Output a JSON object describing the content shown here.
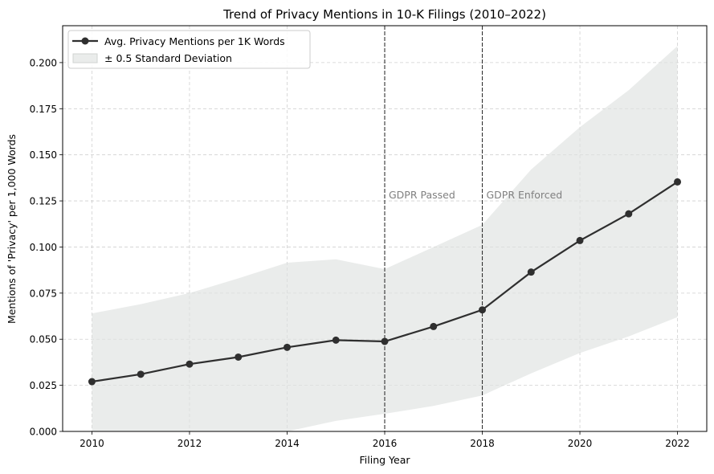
{
  "chart_data": {
    "type": "line",
    "title": "Trend of Privacy Mentions in 10-K Filings (2010–2022)",
    "xlabel": "Filing Year",
    "ylabel": "Mentions of 'Privacy' per 1,000 Words",
    "xlim": [
      2009.4,
      2022.6
    ],
    "ylim": [
      0,
      0.22
    ],
    "xticks": [
      2010,
      2012,
      2014,
      2016,
      2018,
      2020,
      2022
    ],
    "xtick_labels": [
      "2010",
      "2012",
      "2014",
      "2016",
      "2018",
      "2020",
      "2022"
    ],
    "yticks": [
      0,
      0.025,
      0.05,
      0.075,
      0.1,
      0.125,
      0.15,
      0.175,
      0.2
    ],
    "ytick_labels": [
      "0.000",
      "0.025",
      "0.050",
      "0.075",
      "0.100",
      "0.125",
      "0.150",
      "0.175",
      "0.200"
    ],
    "grid": true,
    "legend_position": "top-left",
    "x": [
      2010,
      2011,
      2012,
      2013,
      2014,
      2015,
      2016,
      2017,
      2018,
      2019,
      2020,
      2021,
      2022
    ],
    "series": [
      {
        "name": "Avg. Privacy Mentions per 1K Words",
        "values": [
          0.027,
          0.031,
          0.0365,
          0.0403,
          0.0456,
          0.0495,
          0.0488,
          0.0569,
          0.0659,
          0.0864,
          0.1035,
          0.118,
          0.1353
        ],
        "color": "#2f2f2f"
      }
    ],
    "band": {
      "name": "± 0.5 Standard Deviation",
      "upper": [
        0.064,
        0.069,
        0.075,
        0.083,
        0.0915,
        0.0933,
        0.088,
        0.1,
        0.112,
        0.142,
        0.165,
        0.185,
        0.209
      ],
      "lower": [
        0,
        0,
        0,
        0,
        0,
        0.0057,
        0.0096,
        0.0138,
        0.0195,
        0.0315,
        0.0425,
        0.0515,
        0.062
      ],
      "color": "#dfe2e0"
    },
    "annotations": [
      {
        "x": 2016,
        "label": "GDPR Passed",
        "y": 0.1285
      },
      {
        "x": 2018,
        "label": "GDPR Enforced",
        "y": 0.1285
      }
    ]
  }
}
